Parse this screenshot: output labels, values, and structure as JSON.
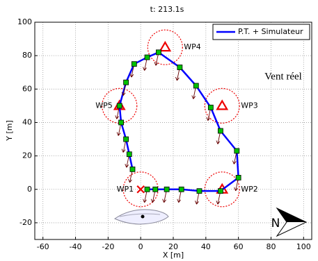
{
  "chart_data": {
    "type": "line",
    "title": "t: 213.1s",
    "xlabel": "X [m]",
    "ylabel": "Y [m]",
    "xlim": [
      -65,
      105
    ],
    "ylim": [
      -30,
      100
    ],
    "xticks": [
      -60,
      -40,
      -20,
      0,
      20,
      40,
      60,
      80,
      100
    ],
    "yticks": [
      -20,
      0,
      20,
      40,
      60,
      80,
      100
    ],
    "grid": true,
    "legend": "upper right",
    "series": [
      {
        "name": "P.T. + Simulateur",
        "color": "#0000ff",
        "marker_color": "#00c000",
        "x": [
          -5,
          -7,
          -9,
          -12,
          -13,
          -9,
          -4,
          4,
          11,
          24,
          34,
          43,
          49,
          59,
          60,
          49,
          36,
          25,
          16,
          9,
          4
        ],
        "values": [
          12,
          21,
          30,
          40,
          50,
          64,
          75,
          79,
          82,
          73,
          62,
          49,
          35,
          23,
          7,
          -1,
          -1,
          0,
          0,
          0,
          0
        ]
      }
    ],
    "waypoints": [
      {
        "label": "WP1",
        "x": 0,
        "y": 0,
        "marker": "x"
      },
      {
        "label": "WP2",
        "x": 50,
        "y": 0,
        "marker": "triangle"
      },
      {
        "label": "WP3",
        "x": 50,
        "y": 50,
        "marker": "triangle"
      },
      {
        "label": "WP4",
        "x": 15,
        "y": 85,
        "marker": "triangle"
      },
      {
        "label": "WP5",
        "x": -13,
        "y": 50,
        "marker": "triangle"
      }
    ],
    "annotation": "Vent réel",
    "compass_label": "N"
  }
}
